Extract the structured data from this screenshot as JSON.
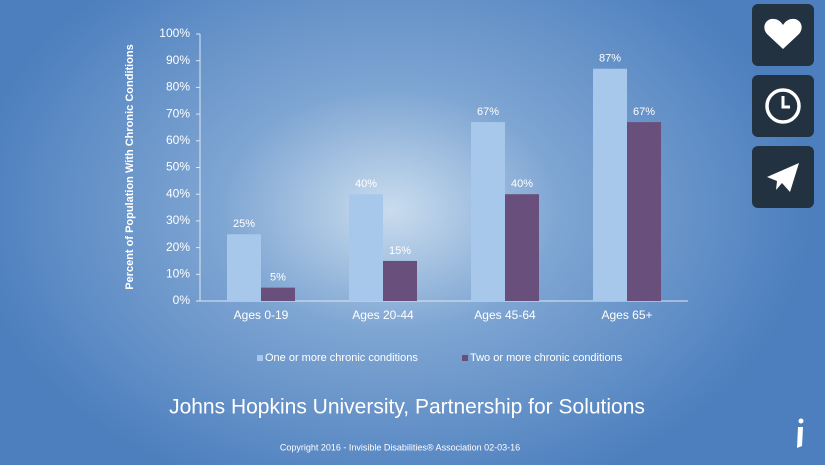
{
  "chart_data": {
    "type": "bar",
    "y_label": "Percent of Population With Chronic Conditions",
    "categories": [
      "Ages 0-19",
      "Ages 20-44",
      "Ages 45-64",
      "Ages 65+"
    ],
    "series": [
      {
        "name": "One or more chronic conditions",
        "color": "#a7c8ea",
        "values": [
          25,
          40,
          67,
          87
        ],
        "value_labels": [
          "25%",
          "40%",
          "67%",
          "87%"
        ]
      },
      {
        "name": "Two or more chronic conditions",
        "color": "#69507c",
        "values": [
          5,
          15,
          40,
          67
        ],
        "value_labels": [
          "5%",
          "15%",
          "40%",
          "67%"
        ]
      }
    ],
    "ylim": [
      0,
      100
    ],
    "yticks": [
      {
        "value": 0,
        "label": "0%"
      },
      {
        "value": 10,
        "label": "10%"
      },
      {
        "value": 20,
        "label": "20%"
      },
      {
        "value": 30,
        "label": "30%"
      },
      {
        "value": 40,
        "label": "40%"
      },
      {
        "value": 50,
        "label": "50%"
      },
      {
        "value": 60,
        "label": "60%"
      },
      {
        "value": 70,
        "label": "70%"
      },
      {
        "value": 80,
        "label": "80%"
      },
      {
        "value": 90,
        "label": "90%"
      },
      {
        "value": 100,
        "label": "100%"
      }
    ],
    "grid": false,
    "legend": "bottom",
    "caption": "Johns Hopkins University, Partnership for Solutions",
    "footnote": "Copyright 2016 - Invisible Disabilities® Association 02-03-16"
  }
}
